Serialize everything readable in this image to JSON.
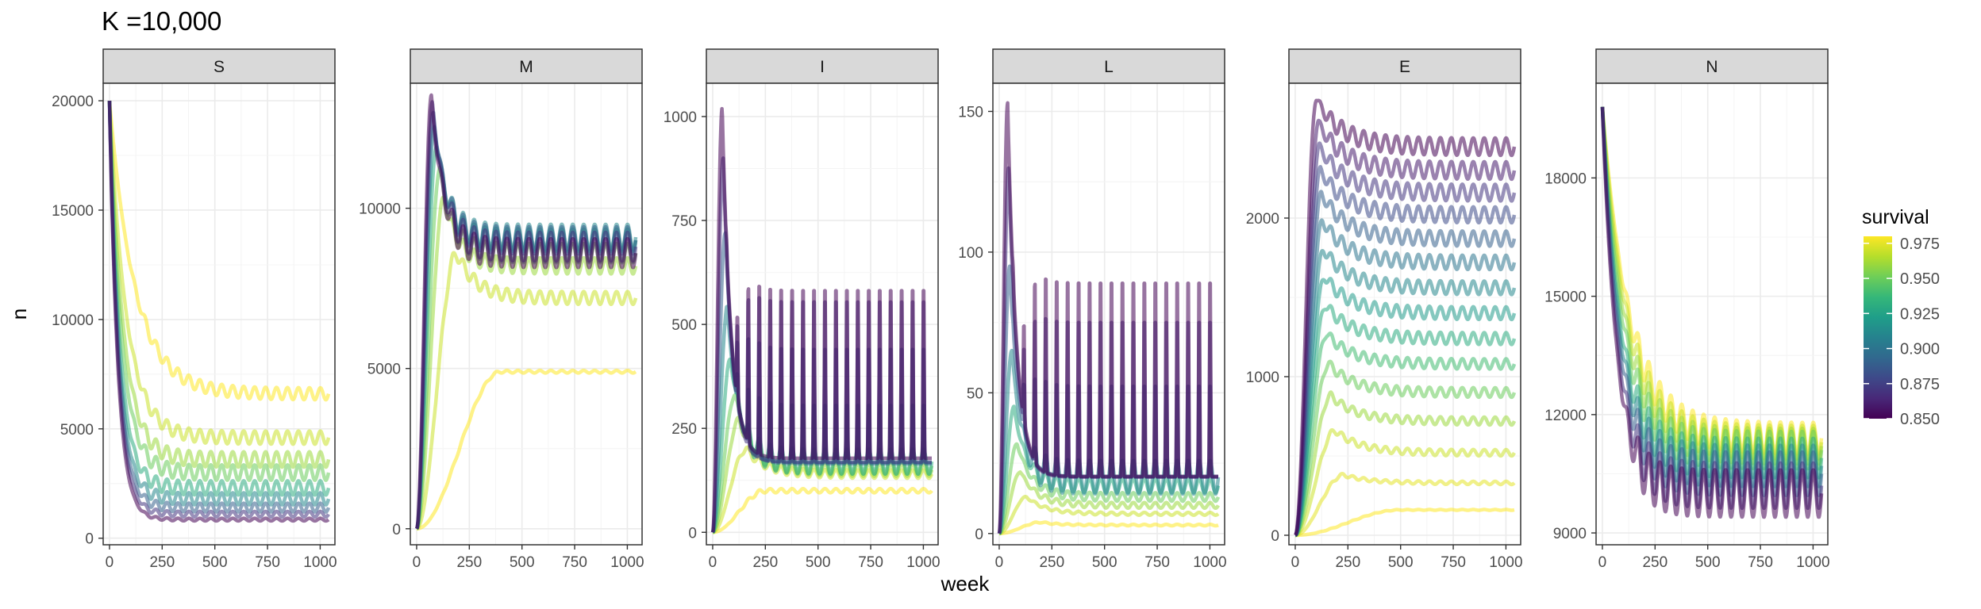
{
  "chart_data": {
    "type": "line",
    "title": "K =10,000",
    "xlabel": "week",
    "ylabel": "n",
    "grid": true,
    "legend": {
      "title": "survival",
      "placement": "right",
      "range": [
        0.85,
        0.98
      ],
      "ticks": [
        "0.975",
        "0.950",
        "0.925",
        "0.900",
        "0.875",
        "0.850"
      ],
      "tick_values": [
        0.975,
        0.95,
        0.925,
        0.9,
        0.875,
        0.85
      ],
      "colormap": "viridis",
      "colors": [
        "#440154",
        "#482878",
        "#3e4989",
        "#31688e",
        "#26828e",
        "#1f9e89",
        "#35b779",
        "#6ece58",
        "#b5de2b",
        "#fde725"
      ]
    },
    "survival_values": [
      0.85,
      0.86,
      0.87,
      0.88,
      0.89,
      0.9,
      0.91,
      0.92,
      0.93,
      0.94,
      0.95,
      0.96,
      0.97,
      0.98
    ],
    "x_range": [
      0,
      1040
    ],
    "x_ticks": [
      0,
      250,
      500,
      750,
      1000
    ],
    "x_tick_labels": [
      "0",
      "250",
      "500",
      "750",
      "1000"
    ],
    "panels": [
      {
        "name": "S",
        "ylim": [
          -300,
          20800
        ],
        "y_ticks": [
          0,
          5000,
          10000,
          15000,
          20000
        ],
        "y_tick_labels": [
          "0",
          "5000",
          "10000",
          "15000",
          "20000"
        ],
        "series": [
          {
            "survival": 0.85,
            "start": 20000,
            "peak": 20000,
            "t_peak": 0,
            "settle": 850,
            "osc": 120,
            "tau": 40,
            "period": 52
          },
          {
            "survival": 0.87,
            "start": 20000,
            "peak": 20000,
            "t_peak": 0,
            "settle": 1100,
            "osc": 250,
            "tau": 42,
            "period": 52
          },
          {
            "survival": 0.89,
            "start": 20000,
            "peak": 20000,
            "t_peak": 0,
            "settle": 1400,
            "osc": 400,
            "tau": 44,
            "period": 52
          },
          {
            "survival": 0.91,
            "start": 20000,
            "peak": 20000,
            "t_peak": 0,
            "settle": 1800,
            "osc": 550,
            "tau": 46,
            "period": 52
          },
          {
            "survival": 0.93,
            "start": 20000,
            "peak": 20000,
            "t_peak": 0,
            "settle": 2300,
            "osc": 650,
            "tau": 50,
            "period": 52
          },
          {
            "survival": 0.95,
            "start": 20000,
            "peak": 20000,
            "t_peak": 0,
            "settle": 3000,
            "osc": 700,
            "tau": 58,
            "period": 52
          },
          {
            "survival": 0.96,
            "start": 20000,
            "peak": 20000,
            "t_peak": 0,
            "settle": 3600,
            "osc": 700,
            "tau": 66,
            "period": 52
          },
          {
            "survival": 0.97,
            "start": 20000,
            "peak": 20000,
            "t_peak": 0,
            "settle": 4600,
            "osc": 600,
            "tau": 80,
            "period": 52
          },
          {
            "survival": 0.98,
            "start": 20000,
            "peak": 20000,
            "t_peak": 0,
            "settle": 6600,
            "osc": 550,
            "tau": 120,
            "period": 52
          }
        ]
      },
      {
        "name": "M",
        "ylim": [
          -500,
          13900
        ],
        "y_ticks": [
          0,
          5000,
          10000
        ],
        "y_tick_labels": [
          "0",
          "5000",
          "10000"
        ],
        "series": [
          {
            "survival": 0.85,
            "start": 0,
            "peak": 13500,
            "t_peak": 70,
            "settle": 8600,
            "osc": 900,
            "tau": 60,
            "period": 52
          },
          {
            "survival": 0.87,
            "start": 0,
            "peak": 13300,
            "t_peak": 75,
            "settle": 8800,
            "osc": 900,
            "tau": 60,
            "period": 52
          },
          {
            "survival": 0.89,
            "start": 0,
            "peak": 13000,
            "t_peak": 80,
            "settle": 9000,
            "osc": 850,
            "tau": 60,
            "period": 52
          },
          {
            "survival": 0.91,
            "start": 0,
            "peak": 12600,
            "t_peak": 85,
            "settle": 9100,
            "osc": 800,
            "tau": 60,
            "period": 52
          },
          {
            "survival": 0.93,
            "start": 0,
            "peak": 12000,
            "t_peak": 95,
            "settle": 9000,
            "osc": 700,
            "tau": 60,
            "period": 52
          },
          {
            "survival": 0.95,
            "start": 0,
            "peak": 11200,
            "t_peak": 110,
            "settle": 8600,
            "osc": 600,
            "tau": 60,
            "period": 52
          },
          {
            "survival": 0.96,
            "start": 0,
            "peak": 10300,
            "t_peak": 130,
            "settle": 8200,
            "osc": 500,
            "tau": 70,
            "period": 52
          },
          {
            "survival": 0.97,
            "start": 0,
            "peak": 8600,
            "t_peak": 190,
            "settle": 7200,
            "osc": 400,
            "tau": 90,
            "period": 52
          },
          {
            "survival": 0.98,
            "start": 0,
            "peak": 4900,
            "t_peak": 400,
            "settle": 4900,
            "osc": 80,
            "tau": 100,
            "period": 52
          }
        ]
      },
      {
        "name": "I",
        "ylim": [
          -30,
          1080
        ],
        "y_ticks": [
          0,
          250,
          500,
          750,
          1000
        ],
        "y_tick_labels": [
          "0",
          "250",
          "500",
          "750",
          "1000"
        ],
        "series": [
          {
            "survival": 0.85,
            "start": 0,
            "peak": 1020,
            "t_peak": 45,
            "settle": 200,
            "osc": 440,
            "tau": 40,
            "period": 52,
            "spiky": true
          },
          {
            "survival": 0.87,
            "start": 0,
            "peak": 900,
            "t_peak": 50,
            "settle": 190,
            "osc": 420,
            "tau": 40,
            "period": 52,
            "spiky": true
          },
          {
            "survival": 0.89,
            "start": 0,
            "peak": 720,
            "t_peak": 60,
            "settle": 180,
            "osc": 300,
            "tau": 45,
            "period": 52,
            "spiky": true
          },
          {
            "survival": 0.91,
            "start": 0,
            "peak": 540,
            "t_peak": 70,
            "settle": 175,
            "osc": 150,
            "tau": 50,
            "period": 52,
            "spiky": true
          },
          {
            "survival": 0.93,
            "start": 0,
            "peak": 420,
            "t_peak": 85,
            "settle": 170,
            "osc": 60,
            "tau": 60,
            "period": 52
          },
          {
            "survival": 0.95,
            "start": 0,
            "peak": 330,
            "t_peak": 105,
            "settle": 160,
            "osc": 40,
            "tau": 70,
            "period": 52
          },
          {
            "survival": 0.96,
            "start": 0,
            "peak": 270,
            "t_peak": 125,
            "settle": 150,
            "osc": 30,
            "tau": 80,
            "period": 52
          },
          {
            "survival": 0.97,
            "start": 0,
            "peak": 200,
            "t_peak": 160,
            "settle": 140,
            "osc": 20,
            "tau": 90,
            "period": 52
          },
          {
            "survival": 0.98,
            "start": 0,
            "peak": 100,
            "t_peak": 250,
            "settle": 100,
            "osc": 10,
            "tau": 80,
            "period": 52
          }
        ]
      },
      {
        "name": "L",
        "ylim": [
          -4,
          160
        ],
        "y_ticks": [
          0,
          50,
          100,
          150
        ],
        "y_tick_labels": [
          "0",
          "50",
          "100",
          "150"
        ],
        "series": [
          {
            "survival": 0.85,
            "start": 0,
            "peak": 153,
            "t_peak": 40,
            "settle": 24,
            "osc": 75,
            "tau": 40,
            "period": 52,
            "spiky": true
          },
          {
            "survival": 0.87,
            "start": 0,
            "peak": 130,
            "t_peak": 45,
            "settle": 23,
            "osc": 60,
            "tau": 40,
            "period": 52,
            "spiky": true
          },
          {
            "survival": 0.89,
            "start": 0,
            "peak": 95,
            "t_peak": 50,
            "settle": 22,
            "osc": 35,
            "tau": 45,
            "period": 52,
            "spiky": true
          },
          {
            "survival": 0.91,
            "start": 0,
            "peak": 65,
            "t_peak": 60,
            "settle": 20,
            "osc": 12,
            "tau": 50,
            "period": 52
          },
          {
            "survival": 0.93,
            "start": 0,
            "peak": 45,
            "t_peak": 70,
            "settle": 17,
            "osc": 5,
            "tau": 60,
            "period": 52
          },
          {
            "survival": 0.95,
            "start": 0,
            "peak": 32,
            "t_peak": 85,
            "settle": 13,
            "osc": 3,
            "tau": 70,
            "period": 52
          },
          {
            "survival": 0.96,
            "start": 0,
            "peak": 22,
            "t_peak": 100,
            "settle": 10,
            "osc": 2,
            "tau": 80,
            "period": 52
          },
          {
            "survival": 0.97,
            "start": 0,
            "peak": 13,
            "t_peak": 130,
            "settle": 7,
            "osc": 1,
            "tau": 90,
            "period": 52
          },
          {
            "survival": 0.98,
            "start": 0,
            "peak": 4,
            "t_peak": 200,
            "settle": 3,
            "osc": 0.5,
            "tau": 80,
            "period": 52
          }
        ]
      },
      {
        "name": "E",
        "ylim": [
          -60,
          2850
        ],
        "y_ticks": [
          0,
          1000,
          2000
        ],
        "y_tick_labels": [
          "0",
          "1000",
          "2000"
        ],
        "series": [
          {
            "survival": 0.85,
            "start": 0,
            "peak": 2750,
            "t_peak": 100,
            "settle": 2450,
            "osc": 110,
            "tau": 120,
            "period": 52
          },
          {
            "survival": 0.86,
            "start": 0,
            "peak": 2600,
            "t_peak": 110,
            "settle": 2300,
            "osc": 110,
            "tau": 120,
            "period": 52
          },
          {
            "survival": 0.87,
            "start": 0,
            "peak": 2450,
            "t_peak": 115,
            "settle": 2160,
            "osc": 105,
            "tau": 120,
            "period": 52
          },
          {
            "survival": 0.88,
            "start": 0,
            "peak": 2300,
            "t_peak": 120,
            "settle": 2020,
            "osc": 100,
            "tau": 120,
            "period": 52
          },
          {
            "survival": 0.89,
            "start": 0,
            "peak": 2150,
            "t_peak": 125,
            "settle": 1870,
            "osc": 95,
            "tau": 120,
            "period": 52
          },
          {
            "survival": 0.9,
            "start": 0,
            "peak": 1980,
            "t_peak": 130,
            "settle": 1720,
            "osc": 90,
            "tau": 120,
            "period": 52
          },
          {
            "survival": 0.91,
            "start": 0,
            "peak": 1800,
            "t_peak": 135,
            "settle": 1560,
            "osc": 85,
            "tau": 120,
            "period": 52
          },
          {
            "survival": 0.92,
            "start": 0,
            "peak": 1630,
            "t_peak": 140,
            "settle": 1400,
            "osc": 80,
            "tau": 120,
            "period": 52
          },
          {
            "survival": 0.93,
            "start": 0,
            "peak": 1450,
            "t_peak": 145,
            "settle": 1240,
            "osc": 75,
            "tau": 120,
            "period": 52
          },
          {
            "survival": 0.94,
            "start": 0,
            "peak": 1270,
            "t_peak": 150,
            "settle": 1080,
            "osc": 65,
            "tau": 120,
            "period": 52
          },
          {
            "survival": 0.95,
            "start": 0,
            "peak": 1080,
            "t_peak": 160,
            "settle": 900,
            "osc": 60,
            "tau": 120,
            "period": 52
          },
          {
            "survival": 0.96,
            "start": 0,
            "peak": 880,
            "t_peak": 170,
            "settle": 720,
            "osc": 50,
            "tau": 120,
            "period": 52
          },
          {
            "survival": 0.97,
            "start": 0,
            "peak": 660,
            "t_peak": 190,
            "settle": 520,
            "osc": 40,
            "tau": 120,
            "period": 52
          },
          {
            "survival": 0.975,
            "start": 0,
            "peak": 380,
            "t_peak": 230,
            "settle": 330,
            "osc": 20,
            "tau": 120,
            "period": 52
          },
          {
            "survival": 0.98,
            "start": 0,
            "peak": 160,
            "t_peak": 500,
            "settle": 160,
            "osc": 5,
            "tau": 120,
            "period": 52
          }
        ]
      },
      {
        "name": "N",
        "ylim": [
          8700,
          20400
        ],
        "y_ticks": [
          9000,
          12000,
          15000,
          18000
        ],
        "y_tick_labels": [
          "9000",
          "12000",
          "15000",
          "18000"
        ],
        "series": [
          {
            "survival": 0.85,
            "start": 19800,
            "peak": 19800,
            "t_peak": 0,
            "settle": 10000,
            "osc": 1200,
            "tau": 70,
            "period": 52
          },
          {
            "survival": 0.87,
            "start": 19800,
            "peak": 19800,
            "t_peak": 0,
            "settle": 10200,
            "osc": 1150,
            "tau": 75,
            "period": 52
          },
          {
            "survival": 0.89,
            "start": 19800,
            "peak": 19800,
            "t_peak": 0,
            "settle": 10500,
            "osc": 1100,
            "tau": 80,
            "period": 52
          },
          {
            "survival": 0.91,
            "start": 19800,
            "peak": 19800,
            "t_peak": 0,
            "settle": 10700,
            "osc": 1050,
            "tau": 85,
            "period": 52
          },
          {
            "survival": 0.93,
            "start": 19800,
            "peak": 19800,
            "t_peak": 0,
            "settle": 10900,
            "osc": 1000,
            "tau": 90,
            "period": 52
          },
          {
            "survival": 0.95,
            "start": 19800,
            "peak": 19800,
            "t_peak": 0,
            "settle": 11100,
            "osc": 950,
            "tau": 100,
            "period": 52
          },
          {
            "survival": 0.96,
            "start": 19800,
            "peak": 19800,
            "t_peak": 0,
            "settle": 11200,
            "osc": 900,
            "tau": 110,
            "period": 52
          },
          {
            "survival": 0.97,
            "start": 19800,
            "peak": 19800,
            "t_peak": 0,
            "settle": 11300,
            "osc": 850,
            "tau": 120,
            "period": 52
          },
          {
            "survival": 0.98,
            "start": 19800,
            "peak": 19800,
            "t_peak": 0,
            "settle": 11400,
            "osc": 800,
            "tau": 130,
            "period": 52
          }
        ]
      }
    ]
  }
}
